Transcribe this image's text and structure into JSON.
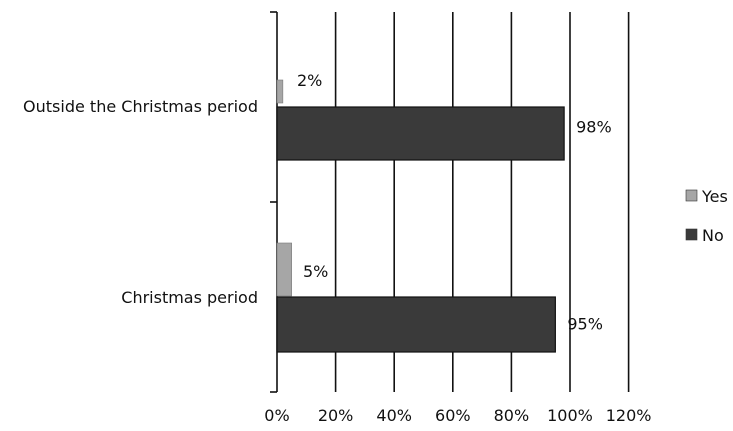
{
  "chart_data": {
    "type": "bar",
    "orientation": "horizontal",
    "categories": [
      "Outside the Christmas period",
      "Christmas period"
    ],
    "series": [
      {
        "name": "Yes",
        "values": [
          2,
          5
        ],
        "labels": [
          "2%",
          "5%"
        ],
        "color": "#a6a6a6"
      },
      {
        "name": "No",
        "values": [
          98,
          95
        ],
        "labels": [
          "98%",
          "95%"
        ],
        "color": "#3a3a3a"
      }
    ],
    "x_ticks": [
      0,
      20,
      40,
      60,
      80,
      100,
      120
    ],
    "x_tick_labels": [
      "0%",
      "20%",
      "40%",
      "60%",
      "80%",
      "100%",
      "120%"
    ],
    "xlim": [
      0,
      120
    ],
    "unit": "%",
    "grid": "vertical",
    "legend": "right"
  }
}
